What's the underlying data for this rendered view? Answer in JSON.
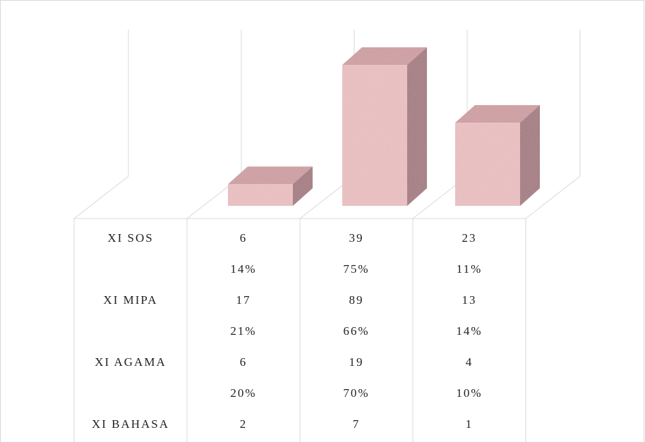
{
  "chart_data": {
    "type": "bar3d",
    "categories": [
      null,
      null,
      null
    ],
    "series": [
      {
        "name": "XI SOS",
        "values": [
          6,
          39,
          23
        ],
        "color": "#e6b9bb"
      }
    ],
    "ylim": [
      0,
      40
    ],
    "table_rows": [
      {
        "name": null,
        "values": [
          "14%",
          "75%",
          "11%"
        ]
      },
      {
        "name": "XI MIPA",
        "values": [
          17,
          89,
          13
        ]
      },
      {
        "name": null,
        "values": [
          "21%",
          "66%",
          "14%"
        ]
      },
      {
        "name": "XI AGAMA",
        "values": [
          6,
          19,
          4
        ]
      },
      {
        "name": null,
        "values": [
          "20%",
          "70%",
          "10%"
        ]
      },
      {
        "name": "XI BAHASA",
        "values": [
          2,
          7,
          1
        ]
      }
    ]
  }
}
